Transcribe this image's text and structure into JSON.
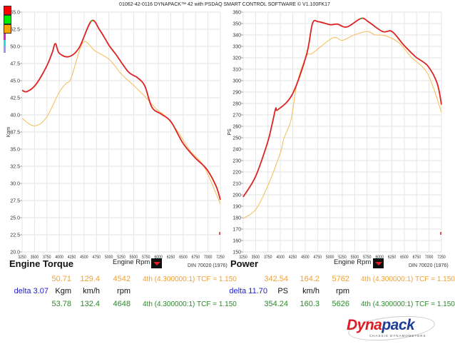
{
  "header": {
    "title": "01062-42-0116 DYNAPACK™ 42 with PSDAQ SMART CONTROL SOFTWARE © V1.100FK17"
  },
  "legend_colors": [
    "#ff0000",
    "#00ee00",
    "#ffa500",
    "#e020c0",
    "#20e0e0",
    "#9999ee"
  ],
  "colors": {
    "run_a": "#f5c060",
    "run_b": "#dd2222",
    "grid": "#e6e6e6"
  },
  "chart_data": [
    {
      "type": "line",
      "title": "Engine Torque",
      "xlabel": "Engine Rpm",
      "ylabel": "Kgm",
      "standard": "DIN 70020 (1976)",
      "xlim": [
        3250,
        7250
      ],
      "ylim": [
        20,
        55
      ],
      "xticks": [
        "3250",
        "3500",
        "3750",
        "4000",
        "4250",
        "4500",
        "4750",
        "5000",
        "5250",
        "5500",
        "5750",
        "6000",
        "6250",
        "6500",
        "6750",
        "7000",
        "7250"
      ],
      "yticks": [
        "20.0",
        "22.5",
        "25.0",
        "27.5",
        "30.0",
        "32.5",
        "35.0",
        "37.5",
        "40.0",
        "42.5",
        "45.0",
        "47.5",
        "50.0",
        "52.5",
        "55.0"
      ],
      "series": [
        {
          "name": "run-a",
          "color": "#f5c060",
          "x": [
            3250,
            3490,
            3728,
            3992,
            4135,
            4235,
            4427,
            4533,
            4714,
            5008,
            5248,
            5487,
            5727,
            5966,
            6158,
            6397,
            6637,
            6924,
            7250
          ],
          "y": [
            39.5,
            38.4,
            39.5,
            43.2,
            44.6,
            45.3,
            49.8,
            50.7,
            49.4,
            48.1,
            46.0,
            44.4,
            42.7,
            40.8,
            39.7,
            37.5,
            34.8,
            32.4,
            27.0
          ]
        },
        {
          "name": "run-b",
          "color": "#dd2222",
          "x": [
            3250,
            3346,
            3523,
            3738,
            3858,
            3921,
            4000,
            4194,
            4400,
            4648,
            4815,
            5008,
            5150,
            5391,
            5583,
            5727,
            5870,
            6062,
            6254,
            6493,
            6733,
            6972,
            7164,
            7250
          ],
          "y": [
            43.6,
            43.4,
            44.4,
            47.0,
            49.1,
            50.4,
            49.0,
            48.5,
            49.8,
            53.7,
            52.4,
            50.1,
            48.75,
            46.3,
            45.4,
            44.2,
            41.1,
            40.1,
            39.0,
            35.9,
            33.8,
            32.1,
            29.6,
            27.6
          ]
        }
      ]
    },
    {
      "type": "line",
      "title": "Power",
      "xlabel": "Engine Rpm",
      "ylabel": "PS",
      "standard": "DIN 70020 (1976)",
      "xlim": [
        3250,
        7250
      ],
      "ylim": [
        150,
        360
      ],
      "xticks": [
        "3250",
        "3500",
        "3750",
        "4000",
        "4250",
        "4500",
        "4750",
        "5000",
        "5250",
        "5500",
        "5750",
        "6000",
        "6250",
        "6500",
        "6750",
        "7000",
        "7250"
      ],
      "yticks": [
        "150",
        "160",
        "170",
        "180",
        "190",
        "200",
        "210",
        "220",
        "230",
        "240",
        "250",
        "260",
        "270",
        "280",
        "290",
        "300",
        "310",
        "320",
        "330",
        "340",
        "350",
        "360"
      ],
      "series": [
        {
          "name": "run-a",
          "color": "#f5c060",
          "x": [
            3250,
            3499,
            3738,
            4001,
            4073,
            4217,
            4337,
            4529,
            4648,
            5056,
            5248,
            5487,
            5750,
            5918,
            6110,
            6397,
            6637,
            6972,
            7250
          ],
          "y": [
            179.4,
            187,
            207,
            237,
            249.6,
            266,
            297.7,
            321.7,
            324,
            337.4,
            335.3,
            340,
            343,
            340,
            339.5,
            333,
            320.7,
            306,
            272.5
          ]
        },
        {
          "name": "run-b",
          "color": "#dd2222",
          "x": [
            3250,
            3499,
            3738,
            3834,
            3907,
            3948,
            4241,
            4529,
            4648,
            4769,
            5008,
            5150,
            5343,
            5631,
            5775,
            6062,
            6254,
            6493,
            6733,
            6972,
            7164,
            7250
          ],
          "y": [
            198.2,
            216,
            245.3,
            262,
            275.7,
            274.5,
            288,
            323,
            350,
            351.6,
            349,
            349.5,
            347,
            354.5,
            351.6,
            343,
            343,
            331,
            320.7,
            313,
            297.6,
            279
          ]
        }
      ]
    }
  ],
  "torque": {
    "title": "Engine Torque",
    "rpm_label": "Engine Rpm",
    "din": "DIN 70020 (1976)",
    "run_a": {
      "value": "50.71",
      "speed": "129.4",
      "rpm": "4542",
      "gear": "4th (4.300000:1) TCF = 1.150"
    },
    "delta": "delta 3.07",
    "unit": "Kgm",
    "speed_unit": "km/h",
    "rpm_unit": "rpm",
    "run_b": {
      "value": "53.78",
      "speed": "132.4",
      "rpm": "4648",
      "gear": "4th (4.300000:1) TCF = 1.150"
    }
  },
  "power": {
    "title": "Power",
    "rpm_label": "Engine Rpm",
    "din": "DIN 70020 (1976)",
    "run_a": {
      "value": "342.54",
      "speed": "164.2",
      "rpm": "5762",
      "gear": "4th (4.300000:1) TCF = 1.150"
    },
    "delta": "delta 11.70",
    "unit": "PS",
    "speed_unit": "km/h",
    "rpm_unit": "rpm",
    "run_b": {
      "value": "354.24",
      "speed": "160.3",
      "rpm": "5626",
      "gear": "4th (4.300000:1) TCF = 1.150"
    }
  },
  "logo": {
    "brand": "Dynapack",
    "tagline": "CHASSIS DYNAMOMETERS"
  }
}
